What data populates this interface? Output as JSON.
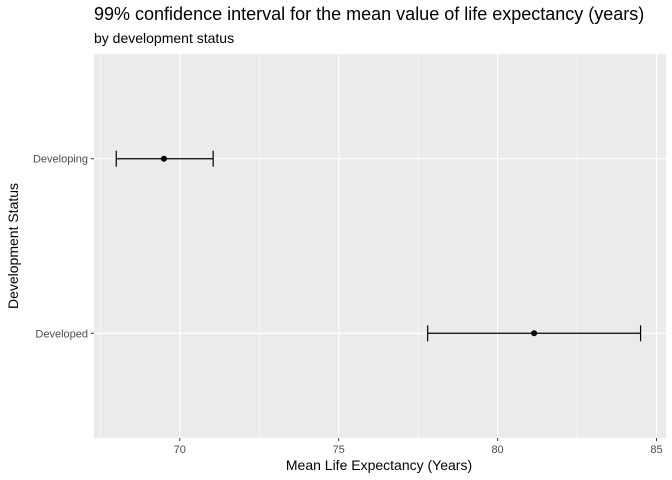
{
  "chart_data": {
    "type": "errorbar",
    "title": "99% confidence interval for the mean value of life expectancy (years)",
    "subtitle": "by development status",
    "xlabel": "Mean Life Expectancy (Years)",
    "ylabel": "Development Status",
    "xlim": [
      67.3,
      85.3
    ],
    "x_ticks": [
      70,
      75,
      80,
      85
    ],
    "categories": [
      "Developing",
      "Developed"
    ],
    "points": [
      {
        "category": "Developing",
        "mean": 69.5,
        "lower": 68.0,
        "upper": 71.05
      },
      {
        "category": "Developed",
        "mean": 81.15,
        "lower": 77.8,
        "upper": 84.5
      }
    ],
    "grid": true,
    "colors": {
      "panel": "#ebebeb",
      "grid": "#ffffff",
      "mark": "#000000",
      "tick_text": "#4d4d4d"
    }
  }
}
